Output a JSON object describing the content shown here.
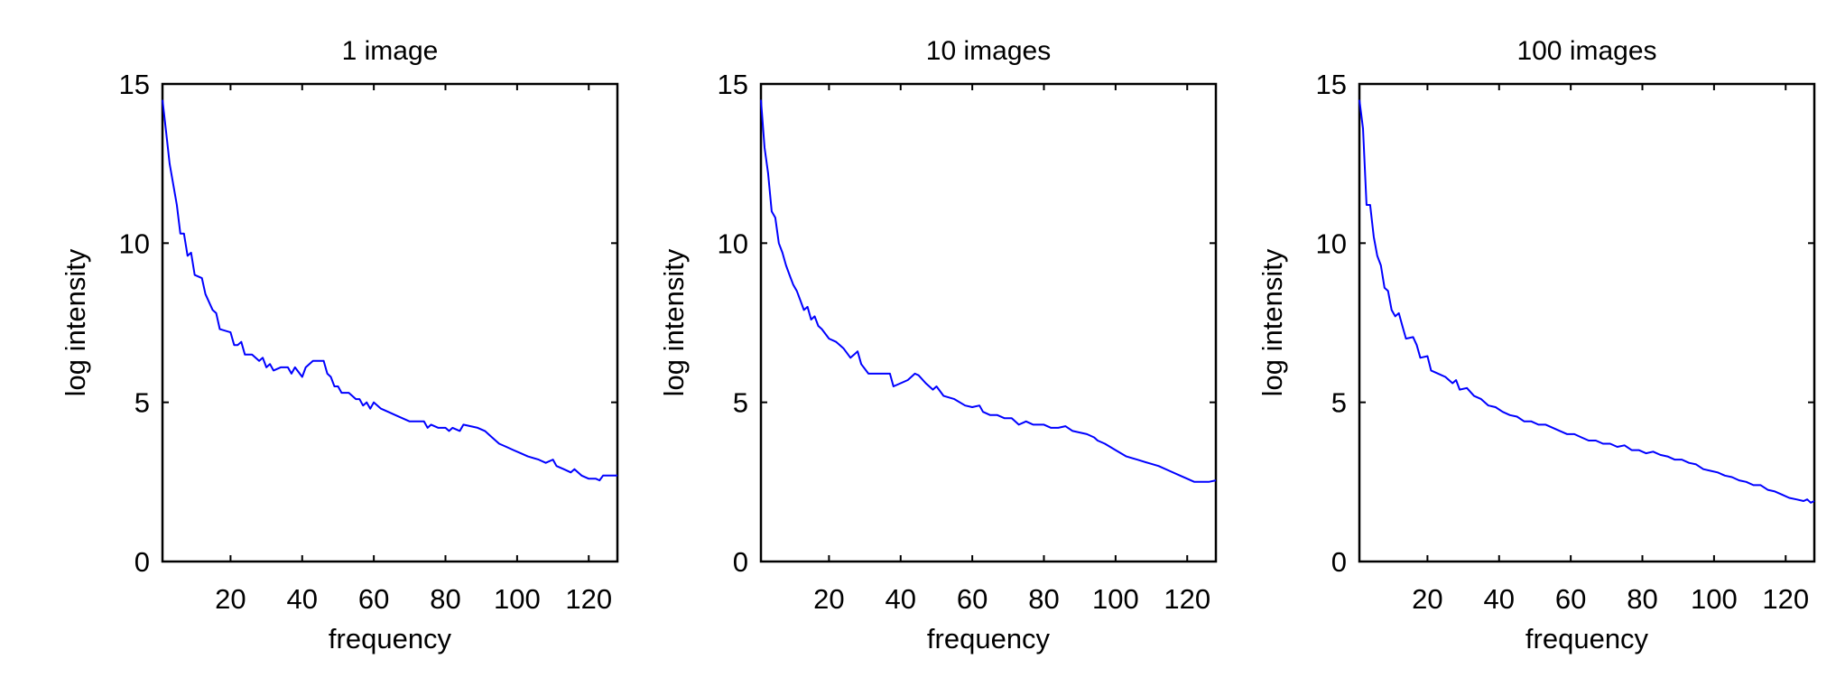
{
  "chart_data": [
    {
      "type": "line",
      "title": "1 image",
      "xlabel": "frequency",
      "ylabel": "log intensity",
      "xlim": [
        1,
        128
      ],
      "ylim": [
        0,
        15
      ],
      "xticks": [
        20,
        40,
        60,
        80,
        100,
        120
      ],
      "yticks": [
        0,
        5,
        10,
        15
      ],
      "grid": false,
      "color": "#0000ff",
      "x": [
        1,
        2,
        3,
        5,
        6,
        7,
        8,
        9,
        10,
        12,
        13,
        15,
        16,
        17,
        20,
        21,
        22,
        23,
        24,
        26,
        28,
        29,
        30,
        31,
        32,
        34,
        36,
        37,
        38,
        40,
        41,
        43,
        44,
        46,
        47,
        48,
        49,
        50,
        51,
        53,
        55,
        56,
        57,
        58,
        59,
        60,
        62,
        64,
        66,
        68,
        70,
        74,
        75,
        76,
        78,
        80,
        81,
        82,
        84,
        85,
        87,
        89,
        91,
        93,
        95,
        97,
        99,
        101,
        103,
        106,
        108,
        110,
        111,
        113,
        115,
        116,
        118,
        120,
        122,
        123,
        124,
        126,
        128
      ],
      "y": [
        14.5,
        13.5,
        12.5,
        11.2,
        10.3,
        10.3,
        9.6,
        9.7,
        9.0,
        8.9,
        8.4,
        7.9,
        7.8,
        7.3,
        7.2,
        6.8,
        6.8,
        6.9,
        6.5,
        6.5,
        6.3,
        6.4,
        6.1,
        6.2,
        6.0,
        6.1,
        6.1,
        5.9,
        6.1,
        5.8,
        6.1,
        6.3,
        6.3,
        6.3,
        5.9,
        5.8,
        5.5,
        5.5,
        5.3,
        5.3,
        5.1,
        5.1,
        4.9,
        5.0,
        4.8,
        5.0,
        4.8,
        4.7,
        4.6,
        4.5,
        4.4,
        4.4,
        4.2,
        4.3,
        4.2,
        4.2,
        4.1,
        4.2,
        4.1,
        4.3,
        4.25,
        4.2,
        4.1,
        3.9,
        3.7,
        3.6,
        3.5,
        3.4,
        3.3,
        3.2,
        3.1,
        3.2,
        3.0,
        2.9,
        2.8,
        2.9,
        2.7,
        2.6,
        2.6,
        2.55,
        2.7,
        2.7,
        2.7
      ]
    },
    {
      "type": "line",
      "title": "10 images",
      "xlabel": "frequency",
      "ylabel": "log intensity",
      "xlim": [
        1,
        128
      ],
      "ylim": [
        0,
        15
      ],
      "xticks": [
        20,
        40,
        60,
        80,
        100,
        120
      ],
      "yticks": [
        0,
        5,
        10,
        15
      ],
      "grid": false,
      "color": "#0000ff",
      "x": [
        1,
        2,
        3,
        4,
        5,
        6,
        7,
        8,
        9,
        10,
        11,
        12,
        13,
        14,
        15,
        16,
        17,
        18,
        20,
        22,
        24,
        26,
        27,
        28,
        29,
        31,
        33,
        35,
        37,
        38,
        40,
        42,
        44,
        45,
        47,
        49,
        50,
        52,
        55,
        58,
        60,
        62,
        63,
        65,
        67,
        69,
        71,
        73,
        75,
        77,
        80,
        82,
        84,
        86,
        88,
        92,
        94,
        95,
        97,
        100,
        103,
        106,
        109,
        112,
        115,
        118,
        120,
        122,
        124,
        126,
        128
      ],
      "y": [
        14.5,
        13,
        12.2,
        11,
        10.8,
        10,
        9.7,
        9.3,
        9.0,
        8.7,
        8.5,
        8.2,
        7.9,
        8.0,
        7.6,
        7.7,
        7.4,
        7.3,
        7.0,
        6.9,
        6.7,
        6.4,
        6.5,
        6.6,
        6.2,
        5.9,
        5.9,
        5.9,
        5.9,
        5.5,
        5.6,
        5.7,
        5.9,
        5.85,
        5.6,
        5.4,
        5.5,
        5.2,
        5.1,
        4.9,
        4.85,
        4.9,
        4.7,
        4.6,
        4.6,
        4.5,
        4.5,
        4.3,
        4.4,
        4.3,
        4.3,
        4.2,
        4.2,
        4.25,
        4.1,
        4.0,
        3.9,
        3.8,
        3.7,
        3.5,
        3.3,
        3.2,
        3.1,
        3.0,
        2.85,
        2.7,
        2.6,
        2.5,
        2.5,
        2.5,
        2.55
      ]
    },
    {
      "type": "line",
      "title": "100 images",
      "xlabel": "frequency",
      "ylabel": "log intensity",
      "xlim": [
        1,
        128
      ],
      "ylim": [
        0,
        15
      ],
      "xticks": [
        20,
        40,
        60,
        80,
        100,
        120
      ],
      "yticks": [
        0,
        5,
        10,
        15
      ],
      "grid": false,
      "color": "#0000ff",
      "x": [
        1,
        2,
        3,
        4,
        5,
        6,
        7,
        8,
        9,
        10,
        11,
        12,
        13,
        14,
        16,
        17,
        18,
        20,
        21,
        23,
        25,
        27,
        28,
        29,
        31,
        33,
        35,
        37,
        39,
        41,
        43,
        45,
        47,
        49,
        51,
        53,
        55,
        57,
        59,
        61,
        63,
        65,
        67,
        69,
        71,
        73,
        75,
        77,
        79,
        81,
        83,
        85,
        87,
        89,
        91,
        93,
        95,
        97,
        99,
        101,
        103,
        105,
        107,
        109,
        111,
        113,
        115,
        117,
        119,
        121,
        123,
        125,
        126,
        127,
        128
      ],
      "y": [
        14.5,
        13.6,
        11.2,
        11.2,
        10.2,
        9.6,
        9.3,
        8.6,
        8.5,
        7.9,
        7.7,
        7.8,
        7.4,
        7.0,
        7.05,
        6.8,
        6.4,
        6.45,
        6.0,
        5.9,
        5.8,
        5.6,
        5.7,
        5.4,
        5.45,
        5.2,
        5.1,
        4.9,
        4.85,
        4.7,
        4.6,
        4.55,
        4.4,
        4.4,
        4.3,
        4.3,
        4.2,
        4.1,
        4.0,
        4.0,
        3.9,
        3.8,
        3.8,
        3.7,
        3.7,
        3.6,
        3.65,
        3.5,
        3.5,
        3.4,
        3.45,
        3.35,
        3.3,
        3.2,
        3.2,
        3.1,
        3.05,
        2.9,
        2.85,
        2.8,
        2.7,
        2.65,
        2.55,
        2.5,
        2.4,
        2.4,
        2.25,
        2.2,
        2.1,
        2.0,
        1.95,
        1.9,
        1.95,
        1.85,
        1.9
      ]
    }
  ]
}
